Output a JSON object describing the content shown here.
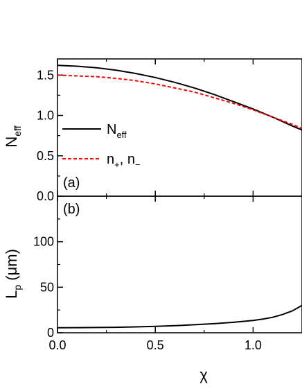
{
  "chart_data": [
    {
      "id": "panel-a",
      "type": "line",
      "panel_label": "(a)",
      "ylabel": "N",
      "ylabel_sub": "eff",
      "xlim": [
        0,
        1.25
      ],
      "ylim": [
        0,
        1.7
      ],
      "y_ticks": [
        {
          "value": 0.0,
          "label": "0.0"
        },
        {
          "value": 0.5,
          "label": "0.5"
        },
        {
          "value": 1.0,
          "label": "1.0"
        },
        {
          "value": 1.5,
          "label": "1.5"
        }
      ],
      "legend_position": "left",
      "series": [
        {
          "name_main": "N",
          "name_sub": "eff",
          "color": "#000000",
          "dash": "solid",
          "x": [
            0,
            0.1,
            0.2,
            0.3,
            0.4,
            0.5,
            0.6,
            0.7,
            0.8,
            0.9,
            1.0,
            1.1,
            1.2,
            1.25
          ],
          "y": [
            1.62,
            1.61,
            1.59,
            1.56,
            1.52,
            1.47,
            1.41,
            1.34,
            1.26,
            1.17,
            1.08,
            0.98,
            0.87,
            0.82
          ]
        },
        {
          "name_main": "n",
          "name_sub": "+",
          "name_sep": ", n",
          "name_sub2": "−",
          "color": "#ff0000",
          "dash": "dashed",
          "x": [
            0,
            0.1,
            0.2,
            0.3,
            0.4,
            0.5,
            0.6,
            0.7,
            0.8,
            0.9,
            1.0,
            1.1,
            1.2,
            1.25
          ],
          "y": [
            1.5,
            1.49,
            1.48,
            1.46,
            1.43,
            1.39,
            1.34,
            1.29,
            1.22,
            1.15,
            1.07,
            0.98,
            0.89,
            0.84
          ]
        }
      ]
    },
    {
      "id": "panel-b",
      "type": "line",
      "panel_label": "(b)",
      "ylabel_prefix": "L",
      "ylabel_sub": "p",
      "ylabel_suffix": " (μm)",
      "xlabel": "χ",
      "xlim": [
        0,
        1.25
      ],
      "ylim": [
        0,
        150
      ],
      "x_ticks": [
        {
          "value": 0.0,
          "label": "0.0"
        },
        {
          "value": 0.5,
          "label": "0.5"
        },
        {
          "value": 1.0,
          "label": "1.0"
        }
      ],
      "y_ticks": [
        {
          "value": 0,
          "label": "0"
        },
        {
          "value": 50,
          "label": "50"
        },
        {
          "value": 100,
          "label": "100"
        }
      ],
      "series": [
        {
          "color": "#000000",
          "dash": "solid",
          "x": [
            0,
            0.1,
            0.2,
            0.3,
            0.4,
            0.5,
            0.6,
            0.7,
            0.8,
            0.9,
            1.0,
            1.05,
            1.1,
            1.15,
            1.2,
            1.25
          ],
          "y": [
            5.5,
            5.6,
            5.8,
            6.0,
            6.5,
            7.0,
            7.8,
            8.8,
            10.0,
            11.5,
            13.5,
            15.0,
            17.0,
            20.0,
            24.0,
            30.0
          ]
        }
      ]
    }
  ]
}
